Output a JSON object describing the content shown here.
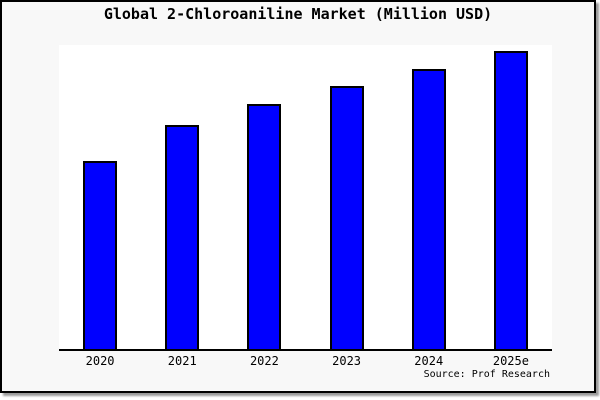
{
  "title": "Global 2-Chloroaniline Market (Million USD)",
  "source_note": "Source: Prof Research",
  "colors": {
    "bar_fill": "#0000ff",
    "bar_border": "#000000",
    "frame_background": "#f8f8f8",
    "plot_background": "#ffffff",
    "axis_line": "#000000",
    "text": "#000000"
  },
  "chart_data": {
    "type": "bar",
    "title": "Global 2-Chloroaniline Market (Million USD)",
    "categories": [
      "2020",
      "2021",
      "2022",
      "2023",
      "2024",
      "2025e"
    ],
    "values": [
      188,
      224,
      245,
      263,
      280,
      298
    ],
    "values_note": "chart shows no y-axis ticks or data labels; values are measured bar heights in pixels against a 304px-tall plot area (steady year-over-year growth)",
    "ylim": [
      0,
      304
    ],
    "xlabel": "",
    "ylabel": "",
    "grid": false,
    "legend": false,
    "y_axis_labels": false,
    "annotation": "Source: Prof Research"
  }
}
